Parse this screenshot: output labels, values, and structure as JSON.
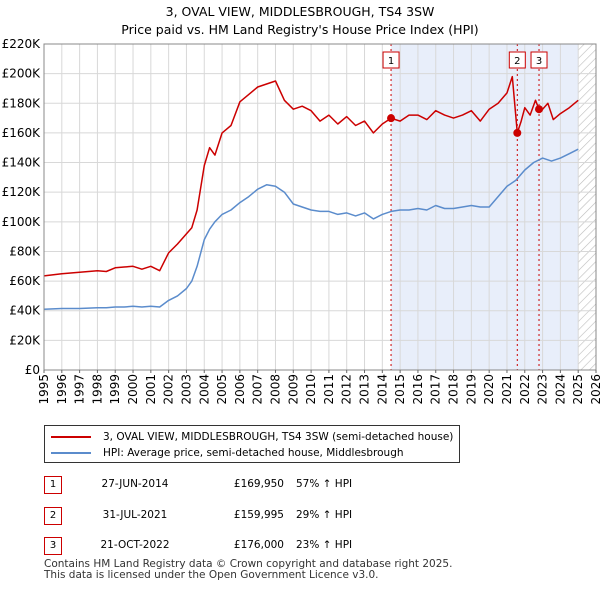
{
  "title": "3, OVAL VIEW, MIDDLESBROUGH, TS4 3SW",
  "subtitle": "Price paid vs. HM Land Registry's House Price Index (HPI)",
  "legend": {
    "property_label": "3, OVAL VIEW, MIDDLESBROUGH, TS4 3SW (semi-detached house)",
    "hpi_label": "HPI: Average price, semi-detached house, Middlesbrough"
  },
  "colors": {
    "property": "#cc0000",
    "hpi": "#5b8ccc",
    "shade": "#e8eefa",
    "grid": "#d8d8d8"
  },
  "transactions": [
    {
      "num": "1",
      "date": "27-JUN-2014",
      "price": "£169,950",
      "hpi": "57% ↑ HPI"
    },
    {
      "num": "2",
      "date": "31-JUL-2021",
      "price": "£159,995",
      "hpi": "29% ↑ HPI"
    },
    {
      "num": "3",
      "date": "21-OCT-2022",
      "price": "£176,000",
      "hpi": "23% ↑ HPI"
    }
  ],
  "footer": {
    "line1": "Contains HM Land Registry data © Crown copyright and database right 2025.",
    "line2": "This data is licensed under the Open Government Licence v3.0."
  },
  "chart_data": {
    "type": "line",
    "xlim": [
      1995,
      2026
    ],
    "ylim": [
      0,
      220000
    ],
    "y_ticks": [
      0,
      20000,
      40000,
      60000,
      80000,
      100000,
      120000,
      140000,
      160000,
      180000,
      200000,
      220000
    ],
    "y_tick_labels": [
      "£0",
      "£20K",
      "£40K",
      "£60K",
      "£80K",
      "£100K",
      "£120K",
      "£140K",
      "£160K",
      "£180K",
      "£200K",
      "£220K"
    ],
    "x_ticks": [
      1995,
      1996,
      1997,
      1998,
      1999,
      2000,
      2001,
      2002,
      2003,
      2004,
      2005,
      2006,
      2007,
      2008,
      2009,
      2010,
      2011,
      2012,
      2013,
      2014,
      2015,
      2016,
      2017,
      2018,
      2019,
      2020,
      2021,
      2022,
      2023,
      2024,
      2025,
      2026
    ],
    "x_tick_labels": [
      "1995",
      "1996",
      "1997",
      "1998",
      "1999",
      "2000",
      "2001",
      "2002",
      "2003",
      "2004",
      "2005",
      "2006",
      "2007",
      "2008",
      "2009",
      "2010",
      "2011",
      "2012",
      "2013",
      "2014",
      "2015",
      "2016",
      "2017",
      "2018",
      "2019",
      "2020",
      "2021",
      "2022",
      "2023",
      "2024",
      "2025",
      "2026"
    ],
    "shaded_region": [
      2014.49,
      2025.0
    ],
    "hatched_region": [
      2025.0,
      2026
    ],
    "series": [
      {
        "name": "3, OVAL VIEW, MIDDLESBROUGH, TS4 3SW (semi-detached house)",
        "x": [
          1995,
          1996,
          1997,
          1998,
          1998.5,
          1999,
          1999.5,
          2000,
          2000.5,
          2001,
          2001.5,
          2002,
          2002.5,
          2003,
          2003.3,
          2003.6,
          2004,
          2004.3,
          2004.6,
          2005,
          2005.5,
          2006,
          2006.5,
          2007,
          2007.5,
          2008,
          2008.5,
          2009,
          2009.5,
          2010,
          2010.5,
          2011,
          2011.5,
          2012,
          2012.5,
          2013,
          2013.5,
          2014,
          2014.49,
          2015,
          2015.5,
          2016,
          2016.5,
          2017,
          2017.5,
          2018,
          2018.5,
          2019,
          2019.5,
          2020,
          2020.5,
          2021,
          2021.3,
          2021.58,
          2021.8,
          2022,
          2022.3,
          2022.6,
          2022.8,
          2023,
          2023.3,
          2023.6,
          2024,
          2024.5,
          2025
        ],
        "y": [
          63500,
          65000,
          66000,
          67000,
          66500,
          69000,
          69500,
          70000,
          68000,
          70000,
          67000,
          79000,
          85000,
          92000,
          96000,
          108000,
          138000,
          150000,
          145000,
          160000,
          165000,
          181000,
          186000,
          191000,
          193000,
          195000,
          182000,
          176000,
          178000,
          175000,
          168000,
          172000,
          166000,
          171000,
          165000,
          168000,
          160000,
          166000,
          169950,
          168000,
          172000,
          172000,
          169000,
          175000,
          172000,
          170000,
          172000,
          175000,
          168000,
          176000,
          180000,
          187000,
          198000,
          159995,
          168000,
          177000,
          172000,
          182000,
          176000,
          176000,
          180000,
          169000,
          173000,
          177000,
          182000
        ]
      },
      {
        "name": "HPI: Average price, semi-detached house, Middlesbrough",
        "x": [
          1995,
          1996,
          1997,
          1998,
          1998.5,
          1999,
          1999.5,
          2000,
          2000.5,
          2001,
          2001.5,
          2002,
          2002.5,
          2003,
          2003.3,
          2003.6,
          2004,
          2004.3,
          2004.6,
          2005,
          2005.5,
          2006,
          2006.5,
          2007,
          2007.5,
          2008,
          2008.5,
          2009,
          2009.5,
          2010,
          2010.5,
          2011,
          2011.5,
          2012,
          2012.5,
          2013,
          2013.5,
          2014,
          2014.5,
          2015,
          2015.5,
          2016,
          2016.5,
          2017,
          2017.5,
          2018,
          2018.5,
          2019,
          2019.5,
          2020,
          2020.5,
          2021,
          2021.5,
          2022,
          2022.5,
          2023,
          2023.5,
          2024,
          2024.5,
          2025
        ],
        "y": [
          41000,
          41500,
          41500,
          42000,
          42000,
          42500,
          42500,
          43000,
          42500,
          43000,
          42500,
          47000,
          50000,
          55000,
          60000,
          70000,
          88000,
          95000,
          100000,
          105000,
          108000,
          113000,
          117000,
          122000,
          125000,
          124000,
          120000,
          112000,
          110000,
          108000,
          107000,
          107000,
          105000,
          106000,
          104000,
          106000,
          102000,
          105000,
          107000,
          108000,
          108000,
          109000,
          108000,
          111000,
          109000,
          109000,
          110000,
          111000,
          110000,
          110000,
          117000,
          124000,
          128000,
          135000,
          140000,
          143000,
          141000,
          143000,
          146000,
          149000
        ]
      }
    ],
    "markers": [
      {
        "label": "1",
        "x": 2014.49,
        "y": 169950
      },
      {
        "label": "2",
        "x": 2021.58,
        "y": 159995
      },
      {
        "label": "3",
        "x": 2022.8,
        "y": 176000
      }
    ]
  }
}
